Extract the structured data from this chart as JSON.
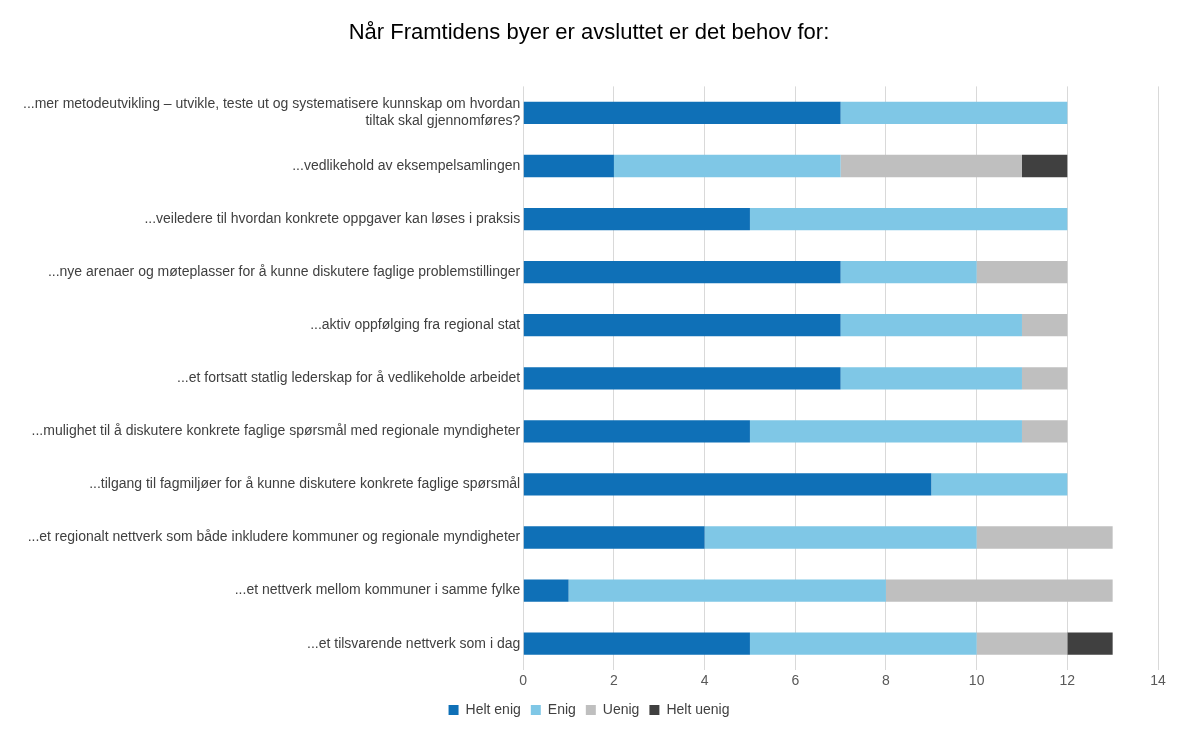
{
  "chart_data": {
    "type": "bar",
    "orientation": "horizontal",
    "stacked": true,
    "title": "Når Framtidens byer er avsluttet er det behov for:",
    "categories": [
      "...mer metodeutvikling – utvikle, teste ut og systematisere kunnskap om hvordan tiltak skal gjennomføres?",
      "...vedlikehold av eksempelsamlingen",
      "...veiledere til hvordan konkrete oppgaver kan løses i praksis",
      "...nye arenaer og møteplasser for å kunne diskutere faglige problemstillinger",
      "...aktiv oppfølging fra regional stat",
      "...et fortsatt statlig lederskap for å vedlikeholde arbeidet",
      "...mulighet til å diskutere konkrete faglige spørsmål med regionale myndigheter",
      "...tilgang til fagmiljøer for å kunne diskutere konkrete faglige spørsmål",
      "...et regionalt nettverk som både inkludere kommuner og regionale myndigheter",
      "...et nettverk mellom kommuner i samme fylke",
      "...et tilsvarende nettverk som i dag"
    ],
    "series": [
      {
        "name": "Helt enig",
        "color": "#0f70b7",
        "values": [
          7,
          2,
          5,
          7,
          7,
          7,
          5,
          9,
          4,
          1,
          5
        ]
      },
      {
        "name": "Enig",
        "color": "#7fc7e6",
        "values": [
          5,
          5,
          7,
          3,
          4,
          4,
          6,
          3,
          6,
          7,
          5
        ]
      },
      {
        "name": "Uenig",
        "color": "#bfbfbf",
        "values": [
          null,
          4,
          null,
          2,
          1,
          1,
          1,
          null,
          3,
          5,
          2
        ]
      },
      {
        "name": "Helt uenig",
        "color": "#404040",
        "values": [
          null,
          1,
          null,
          null,
          null,
          null,
          null,
          null,
          null,
          null,
          1
        ]
      }
    ],
    "xlim": [
      0,
      14
    ],
    "xticks": [
      0,
      2,
      4,
      6,
      8,
      10,
      12,
      14
    ],
    "grid": "x",
    "legend": "bottom"
  }
}
